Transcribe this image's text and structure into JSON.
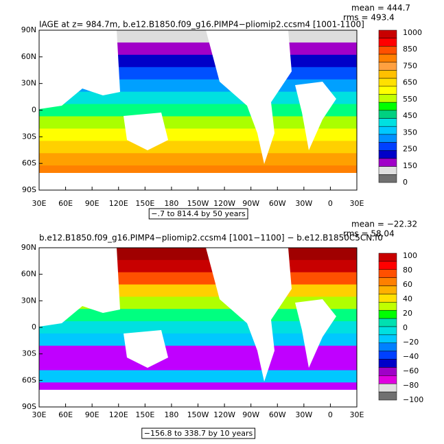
{
  "panels": [
    {
      "title": "IAGE at z= 984.7m, b.e12.B1850.f09_g16.PIMP4−pliomip2.ccsm4 [1001-1100]",
      "mean": "mean = 444.7",
      "rms": "rms = 493.4",
      "lat_labels": [
        "90N",
        "60N",
        "30N",
        "0",
        "30S",
        "60S",
        "90S"
      ],
      "lon_labels": [
        "30E",
        "60E",
        "90E",
        "120E",
        "150E",
        "180",
        "150W",
        "120W",
        "90W",
        "60W",
        "30W",
        "0",
        "30E"
      ],
      "range": "−.7 to 814.4 by 50 years",
      "colorbar_labels": [
        "1000",
        "850",
        "750",
        "650",
        "550",
        "450",
        "350",
        "250",
        "150",
        "0"
      ]
    },
    {
      "title": "b.e12.B1850.f09_g16.PIMP4−pliomip2.ccsm4 [1001−1100] − b.e12.B1850C5CN.f0",
      "mean": "mean = −22.32",
      "rms": "rms = 58.04",
      "lat_labels": [
        "90N",
        "60N",
        "30N",
        "0",
        "30S",
        "60S",
        "90S"
      ],
      "lon_labels": [
        "30E",
        "60E",
        "90E",
        "120E",
        "150E",
        "180",
        "150W",
        "120W",
        "90W",
        "60W",
        "30W",
        "0",
        "30E"
      ],
      "range": "−156.8 to 338.7 by 10 years",
      "colorbar_labels": [
        "100",
        "80",
        "60",
        "40",
        "20",
        "0",
        "−20",
        "−40",
        "−60",
        "−80",
        "−100"
      ]
    }
  ]
}
